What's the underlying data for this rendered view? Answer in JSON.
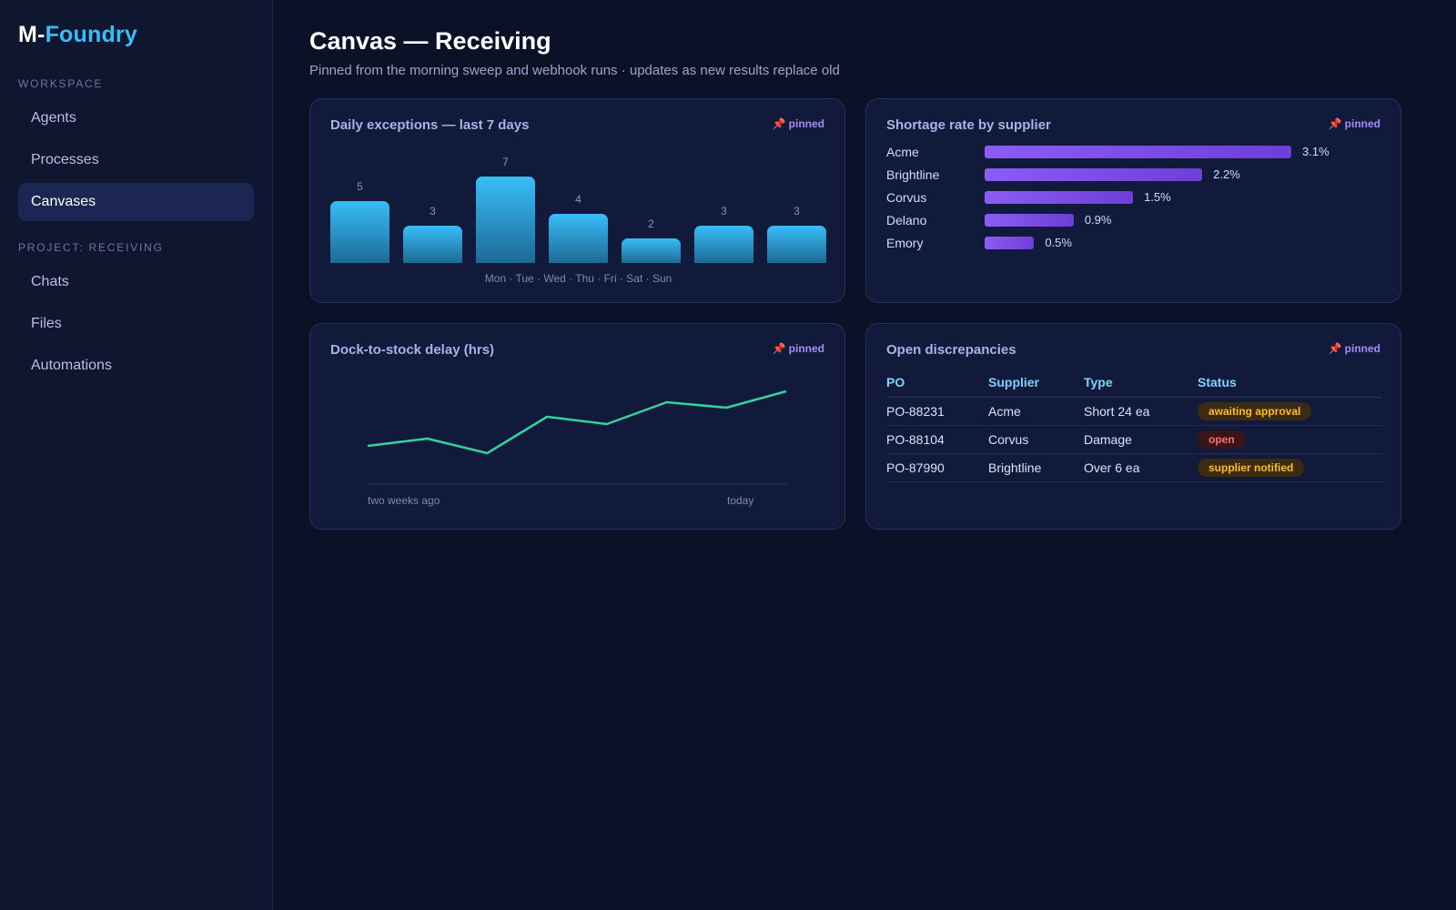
{
  "app": {
    "logo_prefix": "M-",
    "logo_accent": "Foundry"
  },
  "sidebar": {
    "workspace_label": "WORKSPACE",
    "workspace_items": [
      {
        "label": "Agents"
      },
      {
        "label": "Processes"
      },
      {
        "label": "Canvases",
        "active": true
      }
    ],
    "project_label": "PROJECT: RECEIVING",
    "project_items": [
      {
        "label": "Chats"
      },
      {
        "label": "Files"
      },
      {
        "label": "Automations"
      }
    ]
  },
  "header": {
    "title": "Canvas — Receiving",
    "subtitle": "Pinned from the morning sweep and webhook runs · updates as new results replace old"
  },
  "pin_label": "pinned",
  "colors": {
    "accent": "#38bdf8",
    "bar": "#38bdf8",
    "hbar": "#8b5cf6",
    "line": "#34d399",
    "warn": "#fbbf24",
    "danger": "#f87171"
  },
  "chart_data": [
    {
      "type": "bar",
      "title": "Daily exceptions — last 7 days",
      "categories": [
        "Mon",
        "Tue",
        "Wed",
        "Thu",
        "Fri",
        "Sat",
        "Sun"
      ],
      "categories_text": "Mon · Tue · Wed · Thu · Fri · Sat · Sun",
      "values": [
        5,
        3,
        7,
        4,
        2,
        3,
        3
      ],
      "ylim": [
        0,
        7
      ]
    },
    {
      "type": "bar",
      "orientation": "horizontal",
      "title": "Shortage rate by supplier",
      "categories": [
        "Acme",
        "Brightline",
        "Corvus",
        "Delano",
        "Emory"
      ],
      "values": [
        3.1,
        2.2,
        1.5,
        0.9,
        0.5
      ],
      "value_labels": [
        "3.1%",
        "2.2%",
        "1.5%",
        "0.9%",
        "0.5%"
      ],
      "xlim": [
        0,
        3.1
      ]
    },
    {
      "type": "line",
      "title": "Dock-to-stock delay (hrs)",
      "x_start_label": "two weeks ago",
      "x_end_label": "today",
      "values": [
        3.6,
        4.0,
        3.2,
        5.2,
        4.8,
        6.0,
        5.7,
        6.6
      ],
      "ylim": [
        1.0,
        7.5
      ]
    }
  ],
  "table": {
    "title": "Open discrepancies",
    "headers": [
      "PO",
      "Supplier",
      "Type",
      "Status"
    ],
    "rows": [
      {
        "po": "PO-88231",
        "supplier": "Acme",
        "type": "Short 24 ea",
        "status": "awaiting approval",
        "status_kind": "warn"
      },
      {
        "po": "PO-88104",
        "supplier": "Corvus",
        "type": "Damage",
        "status": "open",
        "status_kind": "open"
      },
      {
        "po": "PO-87990",
        "supplier": "Brightline",
        "type": "Over 6 ea",
        "status": "supplier notified",
        "status_kind": "warn"
      }
    ]
  }
}
